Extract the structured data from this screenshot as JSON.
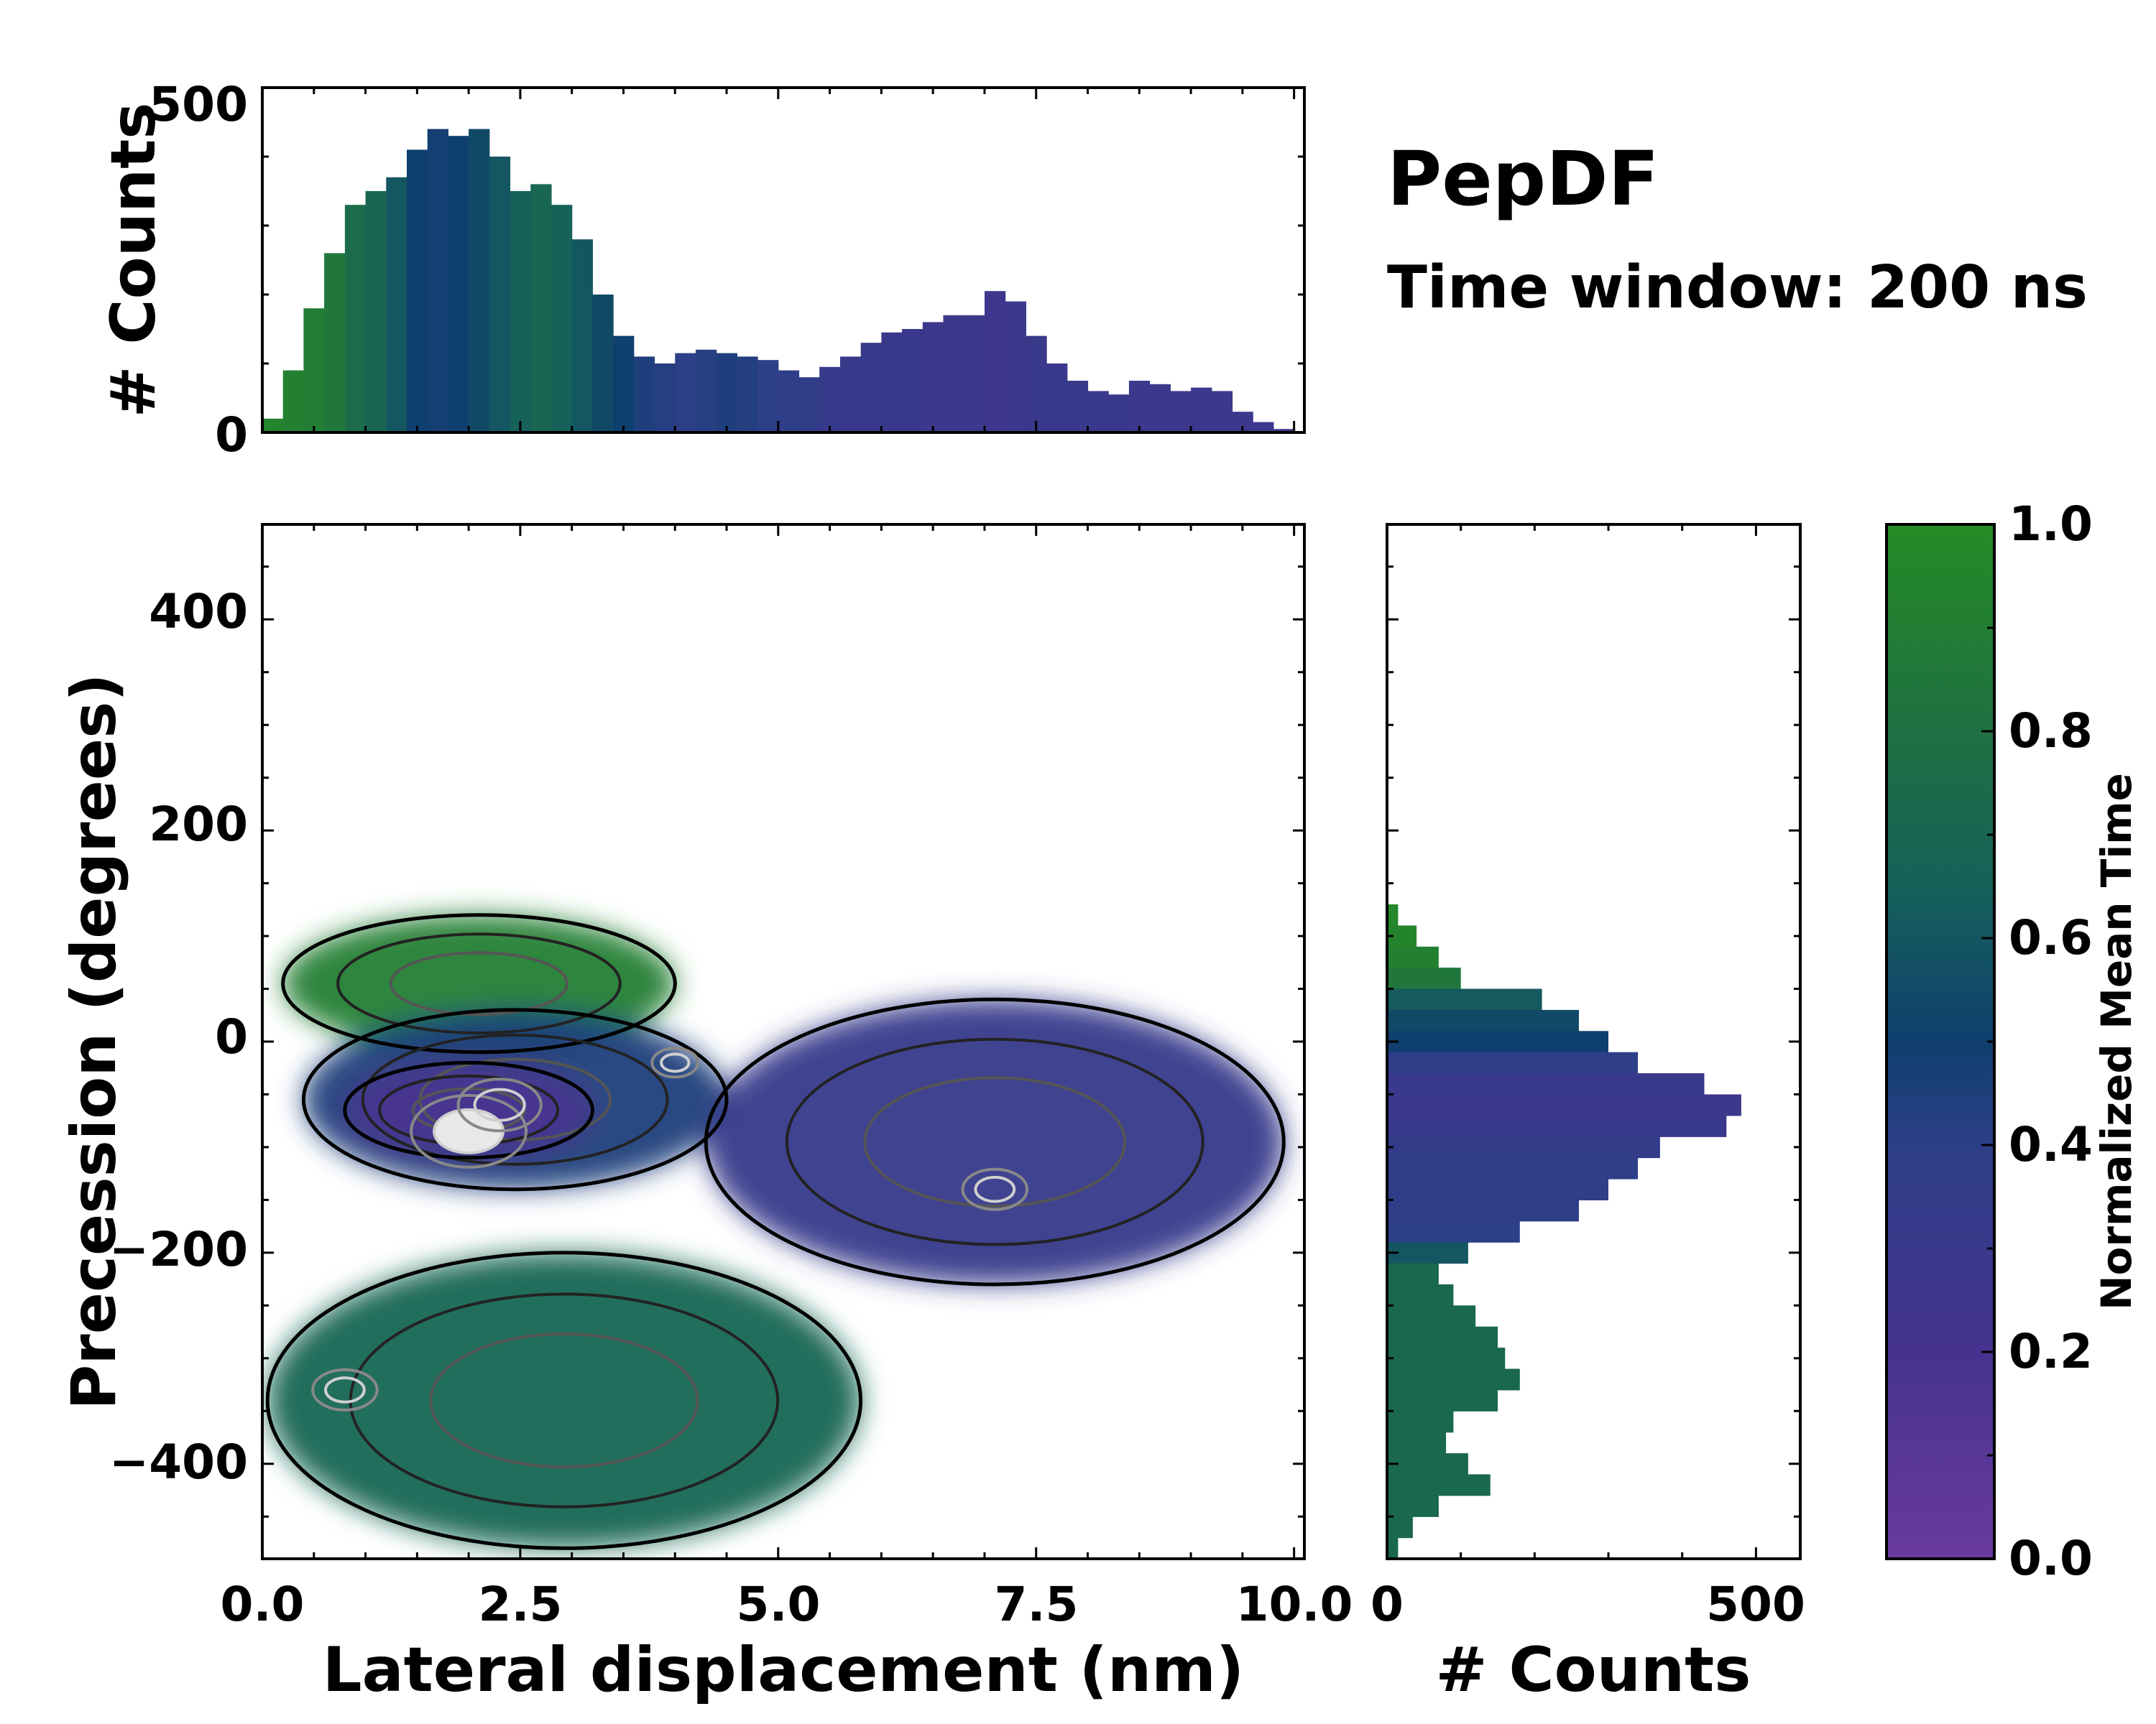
{
  "annotation": {
    "title": "PepDF",
    "subtitle": "Time window: 200 ns"
  },
  "colormap": {
    "stops": [
      {
        "t": 0.0,
        "color": "#6a3a9e"
      },
      {
        "t": 0.2,
        "color": "#46338f"
      },
      {
        "t": 0.4,
        "color": "#2c3f87"
      },
      {
        "t": 0.5,
        "color": "#0f3f6e"
      },
      {
        "t": 0.65,
        "color": "#16615a"
      },
      {
        "t": 0.8,
        "color": "#1f7042"
      },
      {
        "t": 1.0,
        "color": "#258b25"
      }
    ]
  },
  "chart_data": [
    {
      "id": "top_histogram",
      "type": "bar",
      "xlabel": "",
      "ylabel": "# Counts",
      "xlim": [
        0,
        10.1
      ],
      "ylim": [
        0,
        500
      ],
      "yticks": [
        "0",
        "500"
      ],
      "x": [
        0.1,
        0.3,
        0.5,
        0.7,
        0.9,
        1.1,
        1.3,
        1.5,
        1.7,
        1.9,
        2.1,
        2.3,
        2.5,
        2.7,
        2.9,
        3.1,
        3.3,
        3.5,
        3.7,
        3.9,
        4.1,
        4.3,
        4.5,
        4.7,
        4.9,
        5.1,
        5.3,
        5.5,
        5.7,
        5.9,
        6.1,
        6.3,
        6.5,
        6.7,
        6.9,
        7.1,
        7.3,
        7.5,
        7.7,
        7.9,
        8.1,
        8.3,
        8.5,
        8.7,
        8.9,
        9.1,
        9.3,
        9.5,
        9.7,
        9.9
      ],
      "values": [
        20,
        90,
        180,
        260,
        330,
        350,
        370,
        410,
        440,
        430,
        440,
        400,
        350,
        360,
        330,
        280,
        200,
        140,
        110,
        100,
        115,
        120,
        115,
        110,
        105,
        90,
        80,
        95,
        110,
        130,
        145,
        150,
        160,
        170,
        170,
        205,
        190,
        140,
        100,
        75,
        60,
        55,
        75,
        70,
        60,
        65,
        60,
        30,
        15,
        5
      ],
      "color_values": [
        0.95,
        0.92,
        0.9,
        0.85,
        0.75,
        0.7,
        0.6,
        0.5,
        0.48,
        0.5,
        0.55,
        0.6,
        0.65,
        0.7,
        0.65,
        0.6,
        0.55,
        0.5,
        0.45,
        0.42,
        0.4,
        0.42,
        0.45,
        0.43,
        0.4,
        0.38,
        0.36,
        0.33,
        0.3,
        0.3,
        0.3,
        0.3,
        0.28,
        0.28,
        0.28,
        0.26,
        0.28,
        0.3,
        0.3,
        0.3,
        0.3,
        0.3,
        0.28,
        0.28,
        0.28,
        0.28,
        0.28,
        0.28,
        0.28,
        0.28
      ]
    },
    {
      "id": "main_density",
      "type": "heatmap",
      "xlabel": "Lateral displacement (nm)",
      "ylabel": "Precession (degrees)",
      "xlim": [
        0,
        10.1
      ],
      "ylim": [
        -490,
        490
      ],
      "xticks": [
        "0.0",
        "2.5",
        "5.0",
        "7.5",
        "10.0"
      ],
      "yticks": [
        "-400",
        "-200",
        "0",
        "200",
        "400"
      ],
      "regions": [
        {
          "name": "upper-left green cap",
          "x_range": [
            0.2,
            4.0
          ],
          "y_range": [
            -10,
            120
          ],
          "mean_time": 0.9
        },
        {
          "name": "upper-left core",
          "x_range": [
            0.4,
            4.5
          ],
          "y_range": [
            -140,
            30
          ],
          "mean_time": 0.45
        },
        {
          "name": "purple center",
          "x_range": [
            0.8,
            3.2
          ],
          "y_range": [
            -110,
            -20
          ],
          "mean_time": 0.18
        },
        {
          "name": "right lobe",
          "x_range": [
            4.3,
            9.9
          ],
          "y_range": [
            -230,
            40
          ],
          "mean_time": 0.32
        },
        {
          "name": "lower-left lobe",
          "x_range": [
            0.05,
            5.8
          ],
          "y_range": [
            -480,
            -200
          ],
          "mean_time": 0.7
        }
      ],
      "hotspots": [
        {
          "x": 2.0,
          "y": -85,
          "level": "max"
        },
        {
          "x": 2.3,
          "y": -60,
          "level": "high"
        },
        {
          "x": 7.1,
          "y": -140,
          "level": "medium"
        },
        {
          "x": 0.8,
          "y": -330,
          "level": "medium"
        },
        {
          "x": 4.0,
          "y": -20,
          "level": "low"
        }
      ]
    },
    {
      "id": "right_histogram",
      "type": "bar",
      "orientation": "horizontal",
      "xlabel": "# Counts",
      "xlim": [
        0,
        560
      ],
      "xticks": [
        "0",
        "500"
      ],
      "ylim": [
        -490,
        490
      ],
      "y": [
        120,
        100,
        80,
        60,
        40,
        20,
        0,
        -20,
        -40,
        -60,
        -80,
        -100,
        -120,
        -140,
        -160,
        -180,
        -200,
        -220,
        -240,
        -260,
        -280,
        -300,
        -320,
        -340,
        -360,
        -380,
        -400,
        -420,
        -440,
        -460,
        -480
      ],
      "values": [
        15,
        40,
        70,
        100,
        210,
        260,
        300,
        340,
        430,
        480,
        460,
        370,
        340,
        300,
        260,
        180,
        110,
        70,
        90,
        120,
        150,
        160,
        180,
        150,
        90,
        80,
        110,
        140,
        70,
        35,
        15
      ],
      "color_values": [
        0.97,
        0.95,
        0.92,
        0.85,
        0.62,
        0.55,
        0.5,
        0.38,
        0.3,
        0.28,
        0.3,
        0.35,
        0.38,
        0.38,
        0.38,
        0.4,
        0.6,
        0.72,
        0.72,
        0.72,
        0.72,
        0.72,
        0.72,
        0.72,
        0.72,
        0.72,
        0.72,
        0.72,
        0.72,
        0.72,
        0.72
      ]
    },
    {
      "id": "colorbar",
      "type": "colorbar",
      "label": "Normalized Mean Time",
      "range": [
        0,
        1
      ],
      "ticks": [
        "0.0",
        "0.2",
        "0.4",
        "0.6",
        "0.8",
        "1.0"
      ]
    }
  ]
}
